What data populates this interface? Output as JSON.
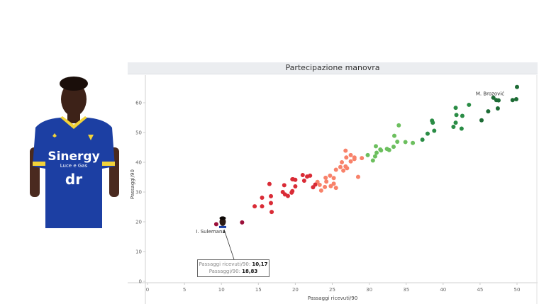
{
  "player": {
    "name": "I. Sulemana",
    "photo_desc": "player-portrait-blue-kit",
    "kit_text_1": "Sinergy",
    "kit_text_2": "Luce e Gas",
    "kit_text_3": "dr"
  },
  "chart": {
    "title": "Partecipazione manovra",
    "xlabel": "Passaggi ricevuti/90",
    "ylabel": "Passaggi/90",
    "tooltip": {
      "line1_label": "Passaggi ricevuti/90: ",
      "line1_value": "10,17",
      "line2_label": "Passaggi/90: ",
      "line2_value": "18,83"
    },
    "annotations": {
      "highlight": "I. Sulemana",
      "top": "M. Brozović"
    }
  },
  "chart_data": {
    "type": "scatter",
    "title": "Partecipazione manovra",
    "xlabel": "Passaggi ricevuti/90",
    "ylabel": "Passaggi/90",
    "xlim": [
      0,
      52
    ],
    "ylim": [
      0,
      66
    ],
    "xticks": [
      0,
      5,
      10,
      15,
      20,
      25,
      30,
      35,
      40,
      45,
      50
    ],
    "yticks": [
      0,
      10,
      20,
      30,
      40,
      50,
      60
    ],
    "grid": false,
    "color_scale": [
      "#9b0f3a",
      "#d92b36",
      "#f8826a",
      "#6cbf5e",
      "#2a8c45",
      "#1d6b35"
    ],
    "highlight": {
      "name": "I. Sulemana",
      "x": 10.17,
      "y": 18.83
    },
    "labeled": [
      {
        "name": "M. Brozović",
        "x": 47.5,
        "y": 61.5
      }
    ],
    "points": [
      [
        9.3,
        19.2
      ],
      [
        12.8,
        19.8
      ],
      [
        14.5,
        25.2
      ],
      [
        15.5,
        25.2
      ],
      [
        16.8,
        23.3
      ],
      [
        16.7,
        26.3
      ],
      [
        16.7,
        28.6
      ],
      [
        15.5,
        28.1
      ],
      [
        16.5,
        32.7
      ],
      [
        18.5,
        32.3
      ],
      [
        18.6,
        29.2
      ],
      [
        19,
        28.7
      ],
      [
        18.3,
        30.0
      ],
      [
        19.5,
        29.8
      ],
      [
        19.6,
        30.3
      ],
      [
        20,
        31.9
      ],
      [
        19.6,
        34.3
      ],
      [
        19.7,
        34.3
      ],
      [
        20,
        34.1
      ],
      [
        21,
        35.7
      ],
      [
        21.6,
        35.2
      ],
      [
        21.2,
        33.8
      ],
      [
        22,
        35.5
      ],
      [
        22.4,
        31.6
      ],
      [
        23.3,
        32.4
      ],
      [
        23,
        33.4
      ],
      [
        24.1,
        34.8
      ],
      [
        24.2,
        33.5
      ],
      [
        24,
        31.7
      ],
      [
        24.8,
        32.0
      ],
      [
        25.2,
        32.8
      ],
      [
        25.5,
        31.4
      ],
      [
        22.7,
        32.5
      ],
      [
        23.5,
        30.5
      ],
      [
        24.7,
        35.5
      ],
      [
        25.2,
        34.7
      ],
      [
        26.1,
        38.4
      ],
      [
        26.5,
        37.2
      ],
      [
        25.5,
        37.5
      ],
      [
        26.8,
        38.6
      ],
      [
        27,
        38.0
      ],
      [
        26.3,
        40.0
      ],
      [
        26.9,
        41.6
      ],
      [
        27.5,
        40.3
      ],
      [
        27.5,
        42.4
      ],
      [
        28,
        41.1
      ],
      [
        26.8,
        43.9
      ],
      [
        28,
        41.6
      ],
      [
        28.5,
        35.1
      ],
      [
        29,
        41.4
      ],
      [
        29.8,
        42.4
      ],
      [
        30.5,
        40.6
      ],
      [
        30.8,
        42.0
      ],
      [
        31.0,
        43.2
      ],
      [
        31.5,
        44.3
      ],
      [
        31.6,
        44.0
      ],
      [
        30.9,
        45.4
      ],
      [
        32.4,
        44.5
      ],
      [
        32.7,
        44.1
      ],
      [
        33.3,
        45.2
      ],
      [
        33.4,
        48.9
      ],
      [
        34,
        52.4
      ],
      [
        33.8,
        46.9
      ],
      [
        34.9,
        46.8
      ],
      [
        35.9,
        46.5
      ],
      [
        37.2,
        47.6
      ],
      [
        37.9,
        49.6
      ],
      [
        38.6,
        53.3
      ],
      [
        38.5,
        54.0
      ],
      [
        38.8,
        50.6
      ],
      [
        41.4,
        51.9
      ],
      [
        41.7,
        58.3
      ],
      [
        41.8,
        55.9
      ],
      [
        42.6,
        55.6
      ],
      [
        42.5,
        51.3
      ],
      [
        43.5,
        59.3
      ],
      [
        45.2,
        54.1
      ],
      [
        46.1,
        57.1
      ],
      [
        46.8,
        61.7
      ],
      [
        47.2,
        60.9
      ],
      [
        47.4,
        58.1
      ],
      [
        47.5,
        60.8
      ],
      [
        49.4,
        60.9
      ],
      [
        49.9,
        61.2
      ],
      [
        50,
        65.3
      ],
      [
        41.7,
        53.3
      ]
    ]
  }
}
